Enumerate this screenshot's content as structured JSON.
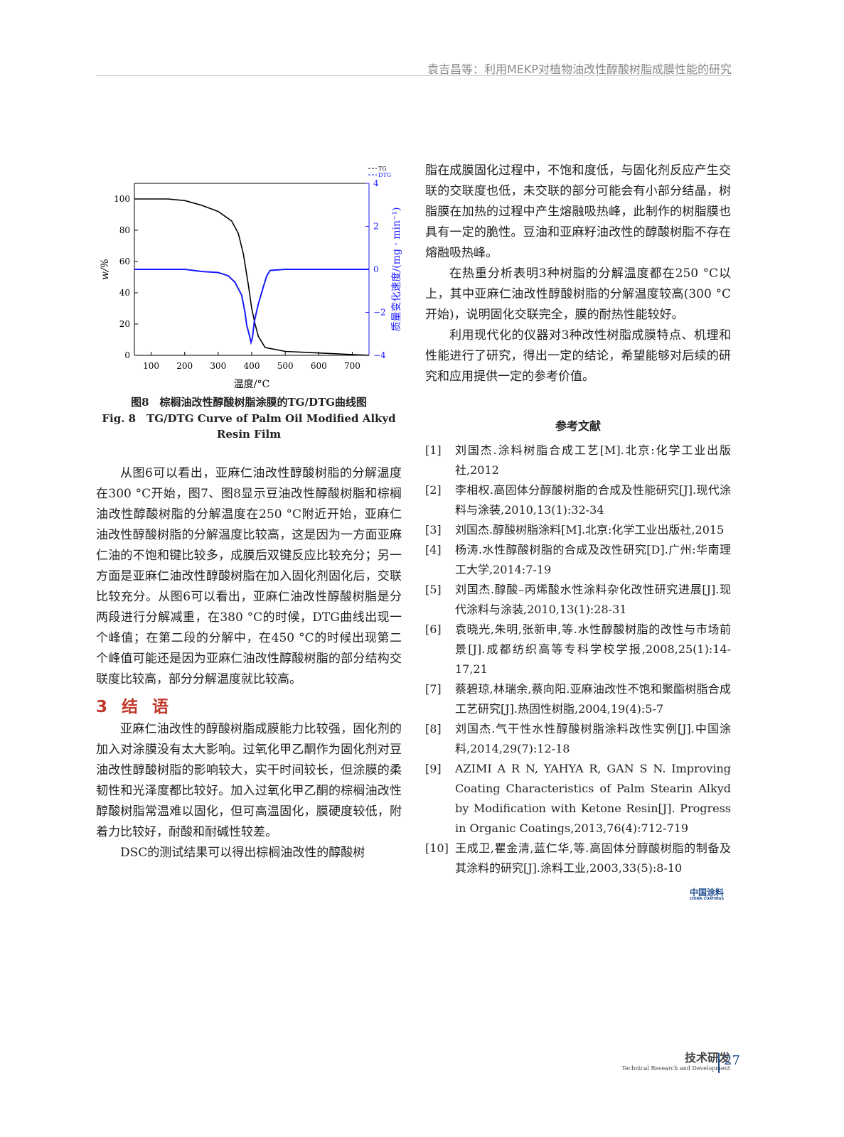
{
  "header": {
    "running_title": "袁吉昌等：利用MEKP对植物油改性醇酸树脂成膜性能的研究"
  },
  "figure": {
    "caption_cn": "图8　棕榈油改性醇酸树脂涂膜的TG/DTG曲线图",
    "caption_en": "Fig. 8　TG/DTG Curve of Palm Oil Modified Alkyd Resin Film"
  },
  "chart_data": {
    "type": "line",
    "xlabel": "温度/°C",
    "ylabel": "w/%",
    "y2label": "质量变化速度/(mg · min⁻¹)",
    "xlim": [
      50,
      750
    ],
    "ylim": [
      0,
      110
    ],
    "y2lim": [
      -4,
      4
    ],
    "xticks": [
      100,
      200,
      300,
      400,
      500,
      600,
      700
    ],
    "yticks": [
      0,
      20,
      40,
      60,
      80,
      100
    ],
    "y2ticks": [
      -4,
      -2,
      0,
      2,
      4
    ],
    "legend_position": "top-right",
    "grid": false,
    "series": [
      {
        "name": "TG",
        "axis": "left",
        "color": "#000000",
        "x": [
          50,
          150,
          200,
          250,
          300,
          340,
          360,
          375,
          390,
          400,
          410,
          420,
          440,
          500,
          600,
          700,
          750
        ],
        "y": [
          100,
          100,
          99,
          96,
          92,
          86,
          78,
          65,
          45,
          30,
          20,
          12,
          5,
          2.5,
          1.5,
          0.5,
          0
        ]
      },
      {
        "name": "DTG",
        "axis": "right",
        "color": "#1a1aff",
        "x": [
          50,
          200,
          250,
          300,
          330,
          350,
          370,
          380,
          385,
          392,
          398,
          402,
          408,
          420,
          435,
          445,
          455,
          500,
          750
        ],
        "y": [
          0,
          0,
          -0.1,
          -0.15,
          -0.3,
          -0.6,
          -1.2,
          -2.0,
          -2.6,
          -3.0,
          -3.4,
          -3.2,
          -2.4,
          -1.6,
          -0.8,
          -0.3,
          -0.05,
          0,
          0
        ]
      }
    ]
  },
  "left_text": {
    "p1": "从图6可以看出，亚麻仁油改性醇酸树脂的分解温度在300 °C开始，图7、图8显示豆油改性醇酸树脂和棕榈油改性醇酸树脂的分解温度在250 °C附近开始，亚麻仁油改性醇酸树脂的分解温度比较高，这是因为一方面亚麻仁油的不饱和键比较多，成膜后双键反应比较充分；另一方面是亚麻仁油改性醇酸树脂在加入固化剂固化后，交联比较充分。从图6可以看出，亚麻仁油改性醇酸树脂是分两段进行分解减重，在380 °C的时候，DTG曲线出现一个峰值；在第二段的分解中，在450 °C的时候出现第二个峰值可能还是因为亚麻仁油改性醇酸树脂的部分结构交联度比较高，部分分解温度就比较高。",
    "section": "3 结 语",
    "p2": "亚麻仁油改性的醇酸树脂成膜能力比较强，固化剂的加入对涂膜没有太大影响。过氧化甲乙酮作为固化剂对豆油改性醇酸树脂的影响较大，实干时间较长，但涂膜的柔韧性和光泽度都比较好。加入过氧化甲乙酮的棕榈油改性醇酸树脂常温难以固化，但可高温固化，膜硬度较低，附着力比较好，耐酸和耐碱性较差。",
    "p3": "DSC的测试结果可以得出棕榈油改性的醇酸树"
  },
  "right_text": {
    "p1": "脂在成膜固化过程中，不饱和度低，与固化剂反应产生交联的交联度也低，未交联的部分可能会有小部分结晶，树脂膜在加热的过程中产生熔融吸热峰，此制作的树脂膜也具有一定的脆性。豆油和亚麻籽油改性的醇酸树脂不存在熔融吸热峰。",
    "p2": "在热重分析表明3种树脂的分解温度都在250 °C以上，其中亚麻仁油改性醇酸树脂的分解温度较高(300 °C开始)，说明固化交联完全，膜的耐热性能较好。",
    "p3": "利用现代化的仪器对3种改性树脂成膜特点、机理和性能进行了研究，得出一定的结论，希望能够对后续的研究和应用提供一定的参考价值。"
  },
  "references": {
    "title": "参考文献",
    "items": [
      {
        "n": "[1]",
        "t": "刘国杰.涂料树脂合成工艺[M].北京:化学工业出版社,2012"
      },
      {
        "n": "[2]",
        "t": "李相权.高固体分醇酸树脂的合成及性能研究[J].现代涂料与涂装,2010,13(1):32-34"
      },
      {
        "n": "[3]",
        "t": "刘国杰.醇酸树脂涂料[M].北京:化学工业出版社,2015"
      },
      {
        "n": "[4]",
        "t": "杨涛.水性醇酸树脂的合成及改性研究[D].广州:华南理工大学,2014:7-19"
      },
      {
        "n": "[5]",
        "t": "刘国杰.醇酸–丙烯酸水性涂料杂化改性研究进展[J].现代涂料与涂装,2010,13(1):28-31"
      },
      {
        "n": "[6]",
        "t": "袁晓光,朱明,张新申,等.水性醇酸树脂的改性与市场前景[J].成都纺织高等专科学校学报,2008,25(1):14-17,21"
      },
      {
        "n": "[7]",
        "t": "蔡碧琼,林瑞余,蔡向阳.亚麻油改性不饱和聚酯树脂合成工艺研究[J].热固性树脂,2004,19(4):5-7"
      },
      {
        "n": "[8]",
        "t": "刘国杰.气干性水性醇酸树脂涂料改性实例[J].中国涂料,2014,29(7):12-18"
      },
      {
        "n": "[9]",
        "t": "AZIMI A R N, YAHYA R, GAN S N. Improving Coating Characteristics of Palm Stearin Alkyd by Modification with Ketone Resin[J]. Progress in Organic Coatings,2013,76(4):712-719"
      },
      {
        "n": "[10]",
        "t": "王成卫,瞿金清,蓝仁华,等.高固体分醇酸树脂的制备及其涂料的研究[J].涂料工业,2003,33(5):8-10"
      }
    ]
  },
  "logo": {
    "cn": "中国涂料",
    "en": "CHINA COATINGS"
  },
  "footer": {
    "section_cn": "技术研发",
    "section_en": "Technical Research and Development",
    "page": "27"
  }
}
